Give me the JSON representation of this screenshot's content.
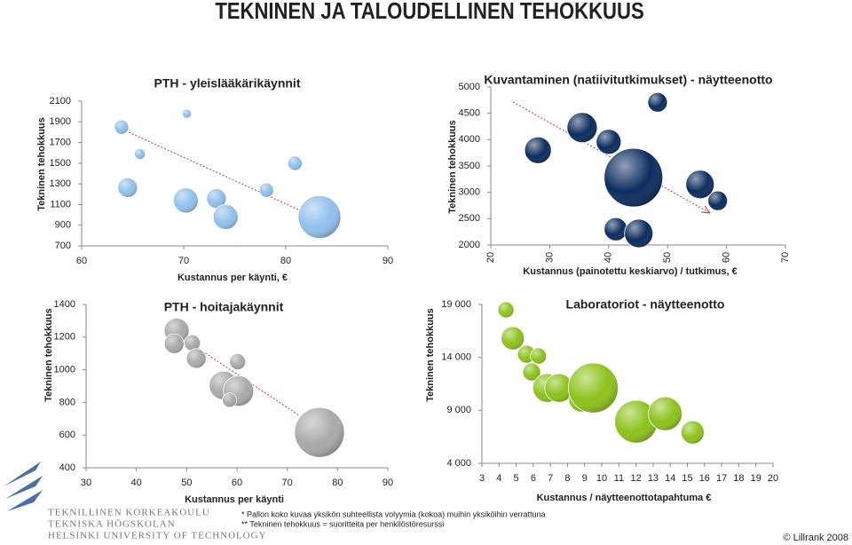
{
  "page": {
    "title": "TEKNINEN JA TALOUDELLINEN TEHOKKUUS",
    "notes": [
      "*   Pallon koko kuvaa yksikön suhteellista volyymia (kokoa) muihin yksiköihin verrattuna",
      "** Tekninen tehokkuus = suoritteita per henkilöstöresurssi"
    ],
    "logo": [
      "TEKNILLINEN KORKEAKOULU",
      "TEKNISKA HÖGSKOLAN",
      "HELSINKI UNIVERSITY OF TECHNOLOGY"
    ],
    "copyright": "© Lillrank 2008"
  },
  "chart_data": [
    {
      "type": "bubble",
      "title": "PTH - yleislääkärikäynnit",
      "xlabel": "Kustannus per käynti, €",
      "ylabel": "Tekninen tehokkuus",
      "color": "#8fc0ec",
      "x": [
        63.9,
        70.3,
        65.7,
        64.5,
        70.2,
        73.2,
        74.1,
        78.1,
        80.9,
        83.3
      ],
      "values": [
        1850,
        1980,
        1590,
        1265,
        1140,
        1160,
        980,
        1240,
        1500,
        980
      ],
      "sizes": [
        64,
        25,
        36,
        121,
        196,
        121,
        196,
        64,
        64,
        576
      ],
      "xlim": [
        60,
        90
      ],
      "xticks": [
        60,
        70,
        80,
        90
      ],
      "ylim": [
        700,
        2100
      ],
      "yticks": [
        700,
        900,
        1100,
        1300,
        1500,
        1700,
        1900,
        2100
      ]
    },
    {
      "type": "bubble",
      "title": "Kuvantaminen (natiivitutkimukset) - näytteenotto",
      "xlabel": "Kustannus (painotettu keskiarvo) / tutkimus, €",
      "ylabel": "Tekninen tehokkuus",
      "color": "#0b2c5e",
      "x": [
        28.0,
        35.5,
        40.0,
        48.3,
        44.2,
        41.2,
        45.1,
        55.5,
        58.5
      ],
      "values": [
        3800,
        4230,
        3960,
        4710,
        3280,
        2300,
        2220,
        3150,
        2840
      ],
      "sizes": [
        225,
        289,
        196,
        121,
        1089,
        169,
        256,
        256,
        121
      ],
      "xlim": [
        20,
        70
      ],
      "xticks": [
        20,
        30,
        40,
        50,
        60,
        70
      ],
      "ylim": [
        2000,
        5000
      ],
      "yticks": [
        2000,
        2500,
        3000,
        3500,
        4000,
        4500,
        5000
      ]
    },
    {
      "type": "bubble",
      "title": "PTH - hoitajakäynnit",
      "xlabel": "Kustannus per käynti",
      "ylabel": "Tekninen tehokkuus",
      "color": "#a9a9a9",
      "x": [
        48.0,
        47.5,
        51.1,
        51.9,
        60.1,
        57.3,
        60.3,
        58.5,
        76.4
      ],
      "values": [
        1240,
        1160,
        1165,
        1070,
        1050,
        905,
        870,
        815,
        617
      ],
      "sizes": [
        196,
        121,
        81,
        121,
        81,
        256,
        289,
        64,
        784
      ],
      "xlim": [
        30,
        90
      ],
      "xticks": [
        30,
        40,
        50,
        60,
        70,
        80,
        90
      ],
      "ylim": [
        400,
        1400
      ],
      "yticks": [
        400,
        600,
        800,
        1000,
        1200,
        1400
      ]
    },
    {
      "type": "bubble",
      "title": "Laboratoriot - näytteenotto",
      "xlabel": "Kustannus / näytteenottotapahtuma €",
      "ylabel": "Tekninen tehokkuus",
      "color": "#8cc21a",
      "x": [
        4.4,
        4.8,
        5.6,
        6.3,
        5.9,
        6.8,
        7.5,
        8.8,
        9.5,
        12.0,
        13.7,
        15.3
      ],
      "values": [
        18500,
        15820,
        14310,
        14140,
        12630,
        11120,
        11120,
        10030,
        11120,
        7940,
        8690,
        6930
      ],
      "sizes": [
        81,
        169,
        100,
        81,
        100,
        256,
        256,
        196,
        784,
        576,
        361,
        169
      ],
      "xlim": [
        3,
        20
      ],
      "xticks": [
        3,
        4,
        5,
        6,
        7,
        8,
        9,
        10,
        11,
        12,
        13,
        14,
        15,
        16,
        17,
        18,
        19,
        20
      ],
      "ylim": [
        4000,
        19000
      ],
      "yticks": [
        {
          "value": 4000,
          "label": "4 000"
        },
        {
          "value": 9000,
          "label": "9 000"
        },
        {
          "value": 14000,
          "label": "14 000"
        },
        {
          "value": 19000,
          "label": "19 000"
        }
      ]
    }
  ]
}
